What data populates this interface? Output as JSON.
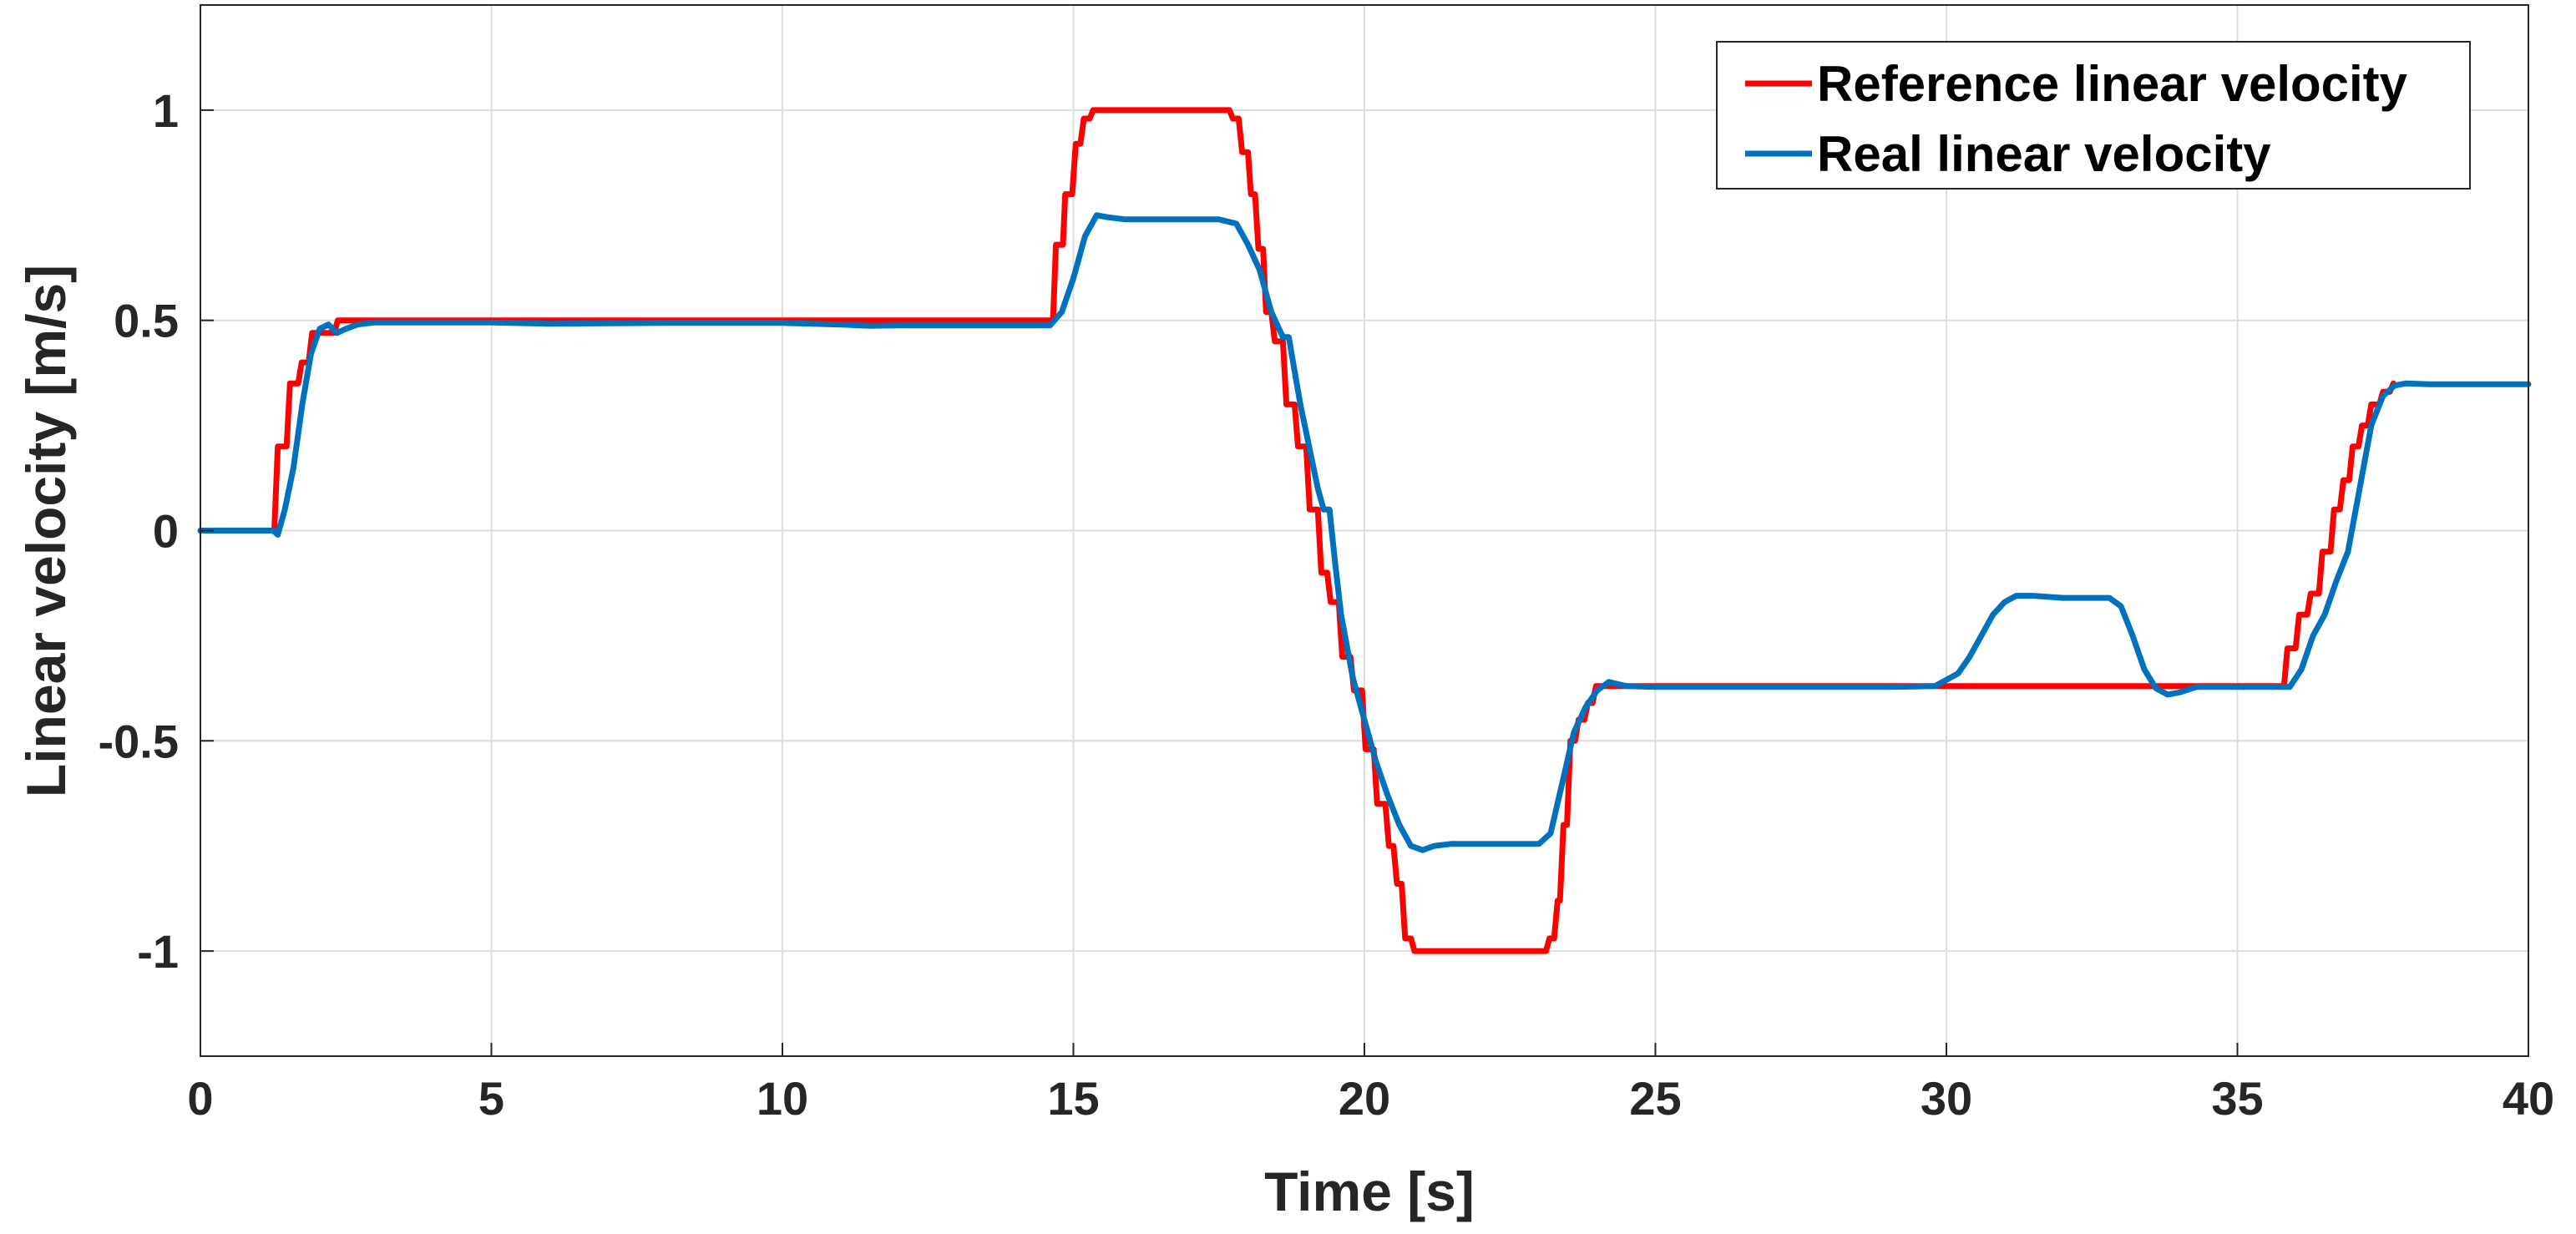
{
  "chart_data": {
    "type": "line",
    "title": "",
    "xlabel": "Time [s]",
    "ylabel": "Linear velocity [m/s]",
    "xlim": [
      0,
      40
    ],
    "ylim": [
      -1.25,
      1.25
    ],
    "xticks": [
      0,
      5,
      10,
      15,
      20,
      25,
      30,
      35,
      40
    ],
    "xtick_labels": [
      "0",
      "5",
      "10",
      "15",
      "20",
      "25",
      "30",
      "35",
      "40"
    ],
    "yticks": [
      -1,
      -0.5,
      0,
      0.5,
      1
    ],
    "ytick_labels": [
      "-1",
      "-0.5",
      "0",
      "0.5",
      "1"
    ],
    "grid": true,
    "legend_position": "top-right",
    "series": [
      {
        "name": "Reference linear velocity",
        "color": "#FF0000",
        "points": [
          [
            0,
            0
          ],
          [
            1.27,
            0
          ],
          [
            1.33,
            0.2
          ],
          [
            1.48,
            0.2
          ],
          [
            1.54,
            0.35
          ],
          [
            1.68,
            0.35
          ],
          [
            1.74,
            0.4
          ],
          [
            1.86,
            0.4
          ],
          [
            1.92,
            0.47
          ],
          [
            2.3,
            0.47
          ],
          [
            2.36,
            0.5
          ],
          [
            14.65,
            0.5
          ],
          [
            14.7,
            0.68
          ],
          [
            14.82,
            0.68
          ],
          [
            14.86,
            0.8
          ],
          [
            14.98,
            0.8
          ],
          [
            15.04,
            0.92
          ],
          [
            15.12,
            0.92
          ],
          [
            15.18,
            0.98
          ],
          [
            15.28,
            0.98
          ],
          [
            15.34,
            1.0
          ],
          [
            17.68,
            1.0
          ],
          [
            17.74,
            0.98
          ],
          [
            17.84,
            0.98
          ],
          [
            17.9,
            0.9
          ],
          [
            18.0,
            0.9
          ],
          [
            18.05,
            0.8
          ],
          [
            18.12,
            0.8
          ],
          [
            18.18,
            0.67
          ],
          [
            18.26,
            0.67
          ],
          [
            18.31,
            0.52
          ],
          [
            18.4,
            0.52
          ],
          [
            18.46,
            0.45
          ],
          [
            18.6,
            0.45
          ],
          [
            18.66,
            0.3
          ],
          [
            18.8,
            0.3
          ],
          [
            18.86,
            0.2
          ],
          [
            19.0,
            0.2
          ],
          [
            19.06,
            0.05
          ],
          [
            19.2,
            0.05
          ],
          [
            19.26,
            -0.1
          ],
          [
            19.36,
            -0.1
          ],
          [
            19.42,
            -0.17
          ],
          [
            19.56,
            -0.17
          ],
          [
            19.62,
            -0.3
          ],
          [
            19.76,
            -0.3
          ],
          [
            19.82,
            -0.38
          ],
          [
            19.96,
            -0.38
          ],
          [
            20.02,
            -0.52
          ],
          [
            20.16,
            -0.52
          ],
          [
            20.22,
            -0.65
          ],
          [
            20.36,
            -0.65
          ],
          [
            20.42,
            -0.75
          ],
          [
            20.5,
            -0.75
          ],
          [
            20.56,
            -0.84
          ],
          [
            20.64,
            -0.84
          ],
          [
            20.7,
            -0.97
          ],
          [
            20.8,
            -0.97
          ],
          [
            20.86,
            -1.0
          ],
          [
            23.12,
            -1.0
          ],
          [
            23.18,
            -0.97
          ],
          [
            23.26,
            -0.97
          ],
          [
            23.32,
            -0.88
          ],
          [
            23.36,
            -0.88
          ],
          [
            23.42,
            -0.7
          ],
          [
            23.48,
            -0.7
          ],
          [
            23.54,
            -0.5
          ],
          [
            23.62,
            -0.5
          ],
          [
            23.68,
            -0.45
          ],
          [
            23.78,
            -0.45
          ],
          [
            23.84,
            -0.41
          ],
          [
            23.92,
            -0.41
          ],
          [
            23.98,
            -0.37
          ],
          [
            35.8,
            -0.37
          ],
          [
            35.86,
            -0.28
          ],
          [
            36.0,
            -0.28
          ],
          [
            36.06,
            -0.2
          ],
          [
            36.2,
            -0.2
          ],
          [
            36.26,
            -0.15
          ],
          [
            36.4,
            -0.15
          ],
          [
            36.46,
            -0.05
          ],
          [
            36.6,
            -0.05
          ],
          [
            36.66,
            0.05
          ],
          [
            36.76,
            0.05
          ],
          [
            36.82,
            0.12
          ],
          [
            36.92,
            0.12
          ],
          [
            36.98,
            0.2
          ],
          [
            37.08,
            0.2
          ],
          [
            37.14,
            0.25
          ],
          [
            37.24,
            0.25
          ],
          [
            37.3,
            0.3
          ],
          [
            37.44,
            0.3
          ],
          [
            37.5,
            0.33
          ],
          [
            37.62,
            0.33
          ],
          [
            37.68,
            0.35
          ]
        ]
      },
      {
        "name": "Real linear velocity",
        "color": "#0072BD",
        "points": [
          [
            0,
            0
          ],
          [
            1.25,
            0
          ],
          [
            1.33,
            -0.01
          ],
          [
            1.45,
            0.05
          ],
          [
            1.6,
            0.15
          ],
          [
            1.75,
            0.3
          ],
          [
            1.9,
            0.42
          ],
          [
            2.05,
            0.48
          ],
          [
            2.2,
            0.49
          ],
          [
            2.35,
            0.47
          ],
          [
            2.5,
            0.48
          ],
          [
            2.7,
            0.49
          ],
          [
            3.0,
            0.495
          ],
          [
            5.0,
            0.495
          ],
          [
            6.0,
            0.492
          ],
          [
            8.0,
            0.494
          ],
          [
            10.0,
            0.494
          ],
          [
            11.0,
            0.49
          ],
          [
            11.5,
            0.487
          ],
          [
            12.0,
            0.488
          ],
          [
            14.6,
            0.488
          ],
          [
            14.8,
            0.52
          ],
          [
            15.0,
            0.6
          ],
          [
            15.2,
            0.7
          ],
          [
            15.4,
            0.75
          ],
          [
            15.6,
            0.745
          ],
          [
            15.9,
            0.74
          ],
          [
            16.5,
            0.74
          ],
          [
            17.5,
            0.74
          ],
          [
            17.8,
            0.73
          ],
          [
            18.0,
            0.68
          ],
          [
            18.2,
            0.62
          ],
          [
            18.4,
            0.52
          ],
          [
            18.6,
            0.46
          ],
          [
            18.7,
            0.46
          ],
          [
            18.9,
            0.3
          ],
          [
            19.05,
            0.2
          ],
          [
            19.2,
            0.1
          ],
          [
            19.3,
            0.05
          ],
          [
            19.4,
            0.05
          ],
          [
            19.5,
            -0.08
          ],
          [
            19.6,
            -0.2
          ],
          [
            19.8,
            -0.35
          ],
          [
            20.0,
            -0.45
          ],
          [
            20.2,
            -0.55
          ],
          [
            20.4,
            -0.63
          ],
          [
            20.6,
            -0.7
          ],
          [
            20.8,
            -0.75
          ],
          [
            21.0,
            -0.76
          ],
          [
            21.2,
            -0.75
          ],
          [
            21.5,
            -0.745
          ],
          [
            22.0,
            -0.745
          ],
          [
            22.5,
            -0.745
          ],
          [
            23.0,
            -0.745
          ],
          [
            23.2,
            -0.72
          ],
          [
            23.4,
            -0.6
          ],
          [
            23.6,
            -0.48
          ],
          [
            23.8,
            -0.42
          ],
          [
            24.0,
            -0.38
          ],
          [
            24.2,
            -0.36
          ],
          [
            24.5,
            -0.37
          ],
          [
            25.0,
            -0.372
          ],
          [
            29.0,
            -0.372
          ],
          [
            29.8,
            -0.37
          ],
          [
            30.0,
            -0.355
          ],
          [
            30.2,
            -0.34
          ],
          [
            30.4,
            -0.3
          ],
          [
            30.6,
            -0.25
          ],
          [
            30.8,
            -0.2
          ],
          [
            31.0,
            -0.17
          ],
          [
            31.2,
            -0.155
          ],
          [
            31.5,
            -0.155
          ],
          [
            32.0,
            -0.16
          ],
          [
            32.8,
            -0.16
          ],
          [
            33.0,
            -0.18
          ],
          [
            33.2,
            -0.25
          ],
          [
            33.4,
            -0.33
          ],
          [
            33.6,
            -0.375
          ],
          [
            33.8,
            -0.39
          ],
          [
            34.0,
            -0.385
          ],
          [
            34.3,
            -0.372
          ],
          [
            35.9,
            -0.372
          ],
          [
            36.1,
            -0.33
          ],
          [
            36.3,
            -0.25
          ],
          [
            36.5,
            -0.2
          ],
          [
            36.7,
            -0.12
          ],
          [
            36.9,
            -0.05
          ],
          [
            37.1,
            0.1
          ],
          [
            37.3,
            0.25
          ],
          [
            37.5,
            0.32
          ],
          [
            37.7,
            0.345
          ],
          [
            37.9,
            0.35
          ],
          [
            38.3,
            0.348
          ],
          [
            40,
            0.348
          ]
        ]
      }
    ]
  }
}
